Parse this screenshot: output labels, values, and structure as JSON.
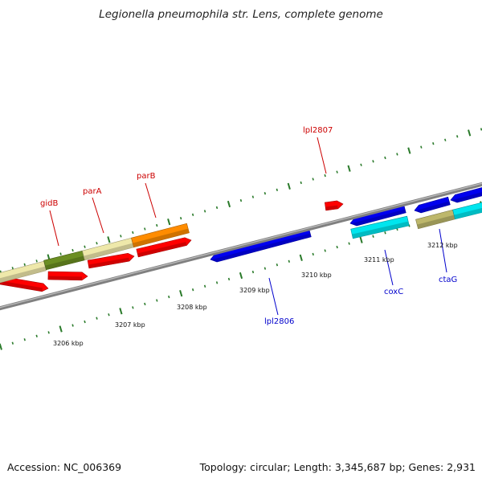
{
  "title": "Legionella pneumophila str. Lens, complete genome",
  "footer": {
    "accession": "Accession: NC_006369",
    "summary": "Topology: circular; Length: 3,345,687 bp; Genes: 2,931"
  },
  "colors": {
    "forward_gene": "#ff0000",
    "reverse_gene": "#0000ee",
    "backbone": "#808080",
    "tick": "#2a7a2a",
    "forward_label": "#cc0000",
    "reverse_label": "#0000cc"
  },
  "scale_labels": [
    "3206 kbp",
    "3207 kbp",
    "3208 kbp",
    "3209 kbp",
    "3210 kbp",
    "3211 kbp",
    "3212 kbp"
  ],
  "gene_labels": {
    "forward": [
      "gidB",
      "parA",
      "parB",
      "lpl2807"
    ],
    "reverse": [
      "lpl2806",
      "coxC",
      "ctaG"
    ]
  }
}
